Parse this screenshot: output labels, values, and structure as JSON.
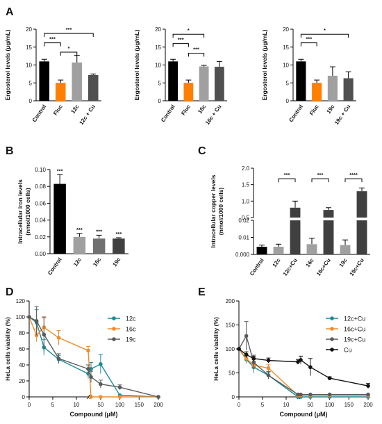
{
  "panel_labels": [
    "A",
    "B",
    "C",
    "D",
    "E"
  ],
  "chart_data": [
    {
      "id": "A1",
      "panel": "A",
      "type": "bar",
      "ylabel": "Ergosterol levels (μg/mL)",
      "ylim": [
        0,
        20
      ],
      "yticks": [
        "0",
        "5",
        "10",
        "15",
        "20"
      ],
      "categories": [
        "Control",
        "Fluc",
        "12c",
        "12c + Cu"
      ],
      "values": [
        11,
        5,
        10.7,
        7.2
      ],
      "errors": [
        0.6,
        0.8,
        2.0,
        0.3
      ],
      "colors": [
        "#000000",
        "#ff8000",
        "#a0a0a0",
        "#505050"
      ],
      "significance": [
        {
          "from": 0,
          "to": 1,
          "label": "***",
          "level": 16.2
        },
        {
          "from": 1,
          "to": 2,
          "label": "*",
          "level": 13.6
        },
        {
          "from": 0,
          "to": 3,
          "label": "***",
          "level": 18.8
        }
      ]
    },
    {
      "id": "A2",
      "panel": "A",
      "type": "bar",
      "ylabel": "Ergosterol levels (μg/mL)",
      "ylim": [
        0,
        20
      ],
      "yticks": [
        "0",
        "5",
        "10",
        "15",
        "20"
      ],
      "categories": [
        "Control",
        "Fluc",
        "16c",
        "16c + Cu"
      ],
      "values": [
        11,
        5,
        9.6,
        9.5
      ],
      "errors": [
        0.6,
        0.8,
        0.3,
        1.5
      ],
      "colors": [
        "#000000",
        "#ff8000",
        "#a0a0a0",
        "#505050"
      ],
      "significance": [
        {
          "from": 0,
          "to": 1,
          "label": "***",
          "level": 16.0
        },
        {
          "from": 1,
          "to": 2,
          "label": "***",
          "level": 13.3
        },
        {
          "from": 0,
          "to": 2,
          "label": "*",
          "level": 18.6
        }
      ]
    },
    {
      "id": "A3",
      "panel": "A",
      "type": "bar",
      "ylabel": "Ergosterol levels (μg/mL)",
      "ylim": [
        0,
        20
      ],
      "yticks": [
        "0",
        "5",
        "10",
        "15",
        "20"
      ],
      "categories": [
        "Control",
        "Fluc",
        "19c",
        "19c + Cu"
      ],
      "values": [
        11,
        5,
        7,
        6.3
      ],
      "errors": [
        0.6,
        0.8,
        2.5,
        1.8
      ],
      "colors": [
        "#000000",
        "#ff8000",
        "#a0a0a0",
        "#505050"
      ],
      "significance": [
        {
          "from": 0,
          "to": 1,
          "label": "***",
          "level": 16.2
        },
        {
          "from": 0,
          "to": 3,
          "label": "*",
          "level": 18.6
        }
      ]
    },
    {
      "id": "B",
      "panel": "B",
      "type": "bar",
      "ylabel": "Intracellular iron levels (nmol/1000 cells)",
      "ylim": [
        0,
        0.1
      ],
      "yticks": [
        "0.00",
        "0.02",
        "0.04",
        "0.06",
        "0.08",
        "0.10"
      ],
      "categories": [
        "Control",
        "12c",
        "16c",
        "19c"
      ],
      "values": [
        0.083,
        0.02,
        0.018,
        0.018
      ],
      "errors": [
        0.011,
        0.004,
        0.004,
        0.001
      ],
      "colors": [
        "#000000",
        "#a0a0a0",
        "#707070",
        "#404040"
      ],
      "bar_labels": [
        "***",
        "***",
        "***",
        "***"
      ]
    },
    {
      "id": "C",
      "panel": "C",
      "type": "bar",
      "ylabel": "Intracellular copper levels (nmol/1000 cells)",
      "ylim": [
        0,
        2.0
      ],
      "axis_break": [
        0.02,
        0.5
      ],
      "yticks": [
        "0.000",
        "0.01",
        "0.02",
        "0.5",
        "1.0",
        "1.5",
        "2.0"
      ],
      "categories": [
        "Control",
        "12c",
        "12c+Cu",
        "16c",
        "16c+Cu",
        "19c",
        "19c+Cu"
      ],
      "values": [
        0.0045,
        0.0045,
        0.8,
        0.006,
        0.73,
        0.0055,
        1.3
      ],
      "errors": [
        0.001,
        0.0015,
        0.2,
        0.0035,
        0.07,
        0.003,
        0.1
      ],
      "colors": [
        "#000000",
        "#a0a0a0",
        "#404040",
        "#a0a0a0",
        "#404040",
        "#a0a0a0",
        "#404040"
      ],
      "significance": [
        {
          "from": 1,
          "to": 2,
          "label": "***",
          "level": 1.68
        },
        {
          "from": 3,
          "to": 4,
          "label": "***",
          "level": 1.68
        },
        {
          "from": 5,
          "to": 6,
          "label": "****",
          "level": 1.68
        }
      ]
    },
    {
      "id": "D",
      "panel": "D",
      "type": "line",
      "xlabel": "Compound (μM)",
      "ylabel": "HeLa cells viability (%)",
      "ylim": [
        0,
        120
      ],
      "yticks": [
        "0",
        "20",
        "40",
        "60",
        "80",
        "100",
        "120"
      ],
      "xticks": [
        "0",
        "5",
        "10",
        "50",
        "100",
        "150",
        "200"
      ],
      "x_axis_break": [
        12.5,
        25
      ],
      "legend_position": "right",
      "series": [
        {
          "name": "12c",
          "color": "#1a8a99",
          "x": [
            0,
            1.56,
            3.13,
            6.25,
            12.5,
            25,
            50,
            100,
            200
          ],
          "y": [
            100,
            93,
            62,
            47,
            29,
            35,
            41,
            2,
            0
          ],
          "err": [
            0,
            16,
            10,
            5,
            6,
            8,
            12,
            0,
            0
          ]
        },
        {
          "name": "16c",
          "color": "#f08c2a",
          "x": [
            0,
            1.56,
            3.13,
            6.25,
            12.5,
            25,
            50,
            100,
            200
          ],
          "y": [
            100,
            77,
            87,
            74,
            58,
            0,
            0,
            0,
            0
          ],
          "err": [
            0,
            8,
            12,
            9,
            5,
            0,
            0,
            0,
            0
          ]
        },
        {
          "name": "19c",
          "color": "#5a5a5a",
          "x": [
            0,
            1.56,
            3.13,
            6.25,
            12.5,
            25,
            50,
            100,
            200
          ],
          "y": [
            100,
            95,
            78,
            48,
            35,
            25,
            16,
            12,
            0
          ],
          "err": [
            0,
            18,
            22,
            6,
            5,
            7,
            5,
            3,
            0
          ]
        }
      ]
    },
    {
      "id": "E",
      "panel": "E",
      "type": "line",
      "xlabel": "Compound (μM)",
      "ylabel": "HeLa cells viability (%)",
      "ylim": [
        0,
        200
      ],
      "yticks": [
        "0",
        "50",
        "100",
        "150",
        "200"
      ],
      "xticks": [
        "0",
        "5",
        "10",
        "50",
        "100",
        "150",
        "200"
      ],
      "x_axis_break": [
        12.5,
        25
      ],
      "legend_position": "right",
      "series": [
        {
          "name": "12c+Cu",
          "color": "#1a8a99",
          "x": [
            0,
            1.56,
            3.13,
            6.25,
            12.5,
            25,
            50,
            100,
            200
          ],
          "y": [
            100,
            78,
            62,
            45,
            0,
            0,
            0,
            0,
            0
          ],
          "err": [
            0,
            8,
            12,
            6,
            0,
            0,
            0,
            0,
            0
          ]
        },
        {
          "name": "16c+Cu",
          "color": "#f08c2a",
          "x": [
            0,
            1.56,
            3.13,
            6.25,
            12.5,
            25,
            50,
            100,
            200
          ],
          "y": [
            100,
            80,
            66,
            60,
            3,
            3,
            3,
            3,
            3
          ],
          "err": [
            0,
            10,
            12,
            8,
            0,
            0,
            0,
            0,
            0
          ]
        },
        {
          "name": "19c+Cu",
          "color": "#5a5a5a",
          "x": [
            0,
            1.56,
            3.13,
            6.25,
            12.5,
            25,
            50,
            100,
            200
          ],
          "y": [
            100,
            127,
            72,
            45,
            5,
            5,
            5,
            5,
            5
          ],
          "err": [
            0,
            30,
            15,
            8,
            0,
            0,
            0,
            0,
            0
          ]
        },
        {
          "name": "Cu",
          "color": "#111111",
          "x": [
            0,
            1.56,
            3.13,
            6.25,
            12.5,
            25,
            50,
            100,
            200
          ],
          "y": [
            100,
            88,
            80,
            76,
            73,
            77,
            62,
            39,
            23
          ],
          "err": [
            0,
            6,
            5,
            5,
            5,
            8,
            18,
            3,
            5
          ]
        }
      ]
    }
  ]
}
